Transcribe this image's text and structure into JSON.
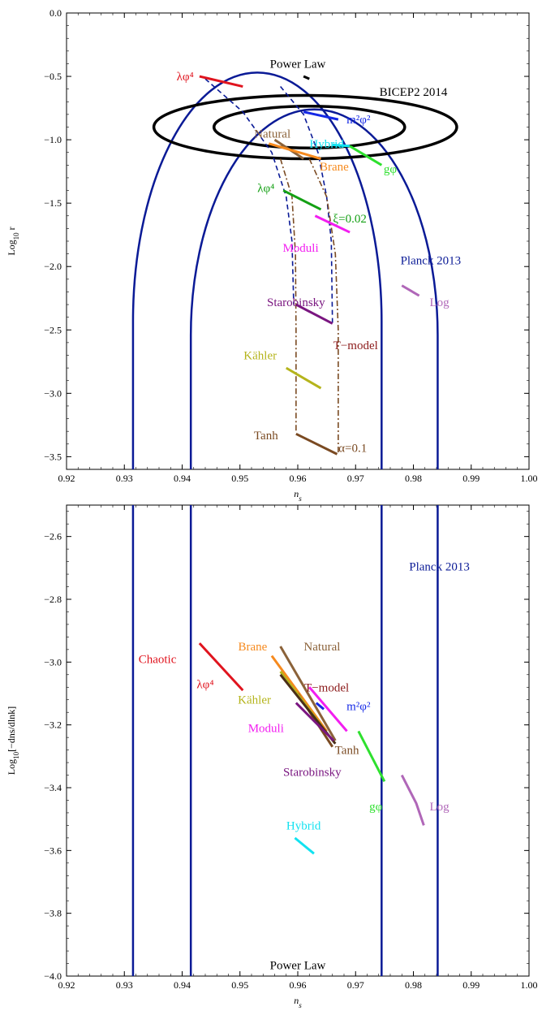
{
  "chart_data": [
    {
      "type": "line",
      "xlabel": "n_s",
      "ylabel": "Log_10 r",
      "xlim": [
        0.92,
        1.0
      ],
      "ylim": [
        -3.6,
        0.0
      ],
      "xticks": [
        0.92,
        0.93,
        0.94,
        0.95,
        0.96,
        0.97,
        0.98,
        0.99,
        1.0
      ],
      "xtick_labels": [
        "0.92",
        "0.93",
        "0.94",
        "0.95",
        "0.96",
        "0.97",
        "0.98",
        "0.99",
        "1.00"
      ],
      "yticks": [
        0.0,
        -0.5,
        -1.0,
        -1.5,
        -2.0,
        -2.5,
        -3.0,
        -3.5
      ],
      "ytick_labels": [
        "0.0",
        "−0.5",
        "−1.0",
        "−1.5",
        "−2.0",
        "−2.5",
        "−3.0",
        "−3.5"
      ],
      "contours": [
        {
          "label": "Planck 2013",
          "color": "#0a1a96",
          "width": 2.5,
          "left": [
            0.9315,
            0.9415
          ],
          "right": [
            0.9745,
            0.9842
          ],
          "top": [
            -0.47,
            -0.76
          ]
        },
        {
          "label": "BICEP2 2014",
          "color": "#000000",
          "width": 3.5,
          "ellipses": [
            {
              "cx": 0.9613,
              "cy": -0.9,
              "rx": 0.0262,
              "ry": 0.25
            },
            {
              "cx": 0.962,
              "cy": -0.9,
              "rx": 0.0165,
              "ry": 0.165
            }
          ]
        }
      ],
      "dashed_curves": [
        {
          "style": "dashed",
          "color": "#0a1a96",
          "points": [
            [
              0.944,
              -0.52
            ],
            [
              0.9505,
              -0.78
            ],
            [
              0.9555,
              -1.1
            ],
            [
              0.958,
              -1.45
            ],
            [
              0.959,
              -1.8
            ],
            [
              0.9593,
              -2.3
            ]
          ]
        },
        {
          "style": "dashed",
          "color": "#0a1a96",
          "points": [
            [
              0.957,
              -0.58
            ],
            [
              0.961,
              -0.8
            ],
            [
              0.9635,
              -1.1
            ],
            [
              0.965,
              -1.45
            ],
            [
              0.9658,
              -1.8
            ],
            [
              0.966,
              -2.45
            ]
          ]
        },
        {
          "style": "dashdot",
          "color": "#7a4a22",
          "points": [
            [
              0.957,
              -1.15
            ],
            [
              0.959,
              -1.45
            ],
            [
              0.9596,
              -1.9
            ],
            [
              0.9597,
              -2.5
            ],
            [
              0.9597,
              -3.3
            ]
          ]
        },
        {
          "style": "dashdot",
          "color": "#7a4a22",
          "points": [
            [
              0.962,
              -1.15
            ],
            [
              0.965,
              -1.45
            ],
            [
              0.9665,
              -1.9
            ],
            [
              0.967,
              -2.5
            ],
            [
              0.967,
              -3.48
            ]
          ]
        }
      ],
      "series": [
        {
          "name": "Power Law",
          "color": "#000000",
          "points": [
            [
              0.961,
              -0.5
            ],
            [
              0.962,
              -0.52
            ]
          ]
        },
        {
          "name": "λφ⁴",
          "color": "#e0141e",
          "points": [
            [
              0.943,
              -0.5
            ],
            [
              0.9505,
              -0.58
            ]
          ]
        },
        {
          "name": "m²φ²",
          "color": "#1428e6",
          "points": [
            [
              0.961,
              -0.78
            ],
            [
              0.967,
              -0.84
            ]
          ]
        },
        {
          "name": "Natural",
          "color": "#8b6239",
          "points": [
            [
              0.956,
              -1.0
            ],
            [
              0.961,
              -1.15
            ]
          ]
        },
        {
          "name": "Hybrid",
          "color": "#12e2f0",
          "points": [
            [
              0.966,
              -1.04
            ],
            [
              0.969,
              -1.05
            ]
          ]
        },
        {
          "name": "Brane",
          "color": "#f68a1e",
          "points": [
            [
              0.955,
              -1.03
            ],
            [
              0.964,
              -1.15
            ]
          ]
        },
        {
          "name": "gφ",
          "color": "#2ee02e",
          "points": [
            [
              0.969,
              -1.05
            ],
            [
              0.9745,
              -1.2
            ]
          ]
        },
        {
          "name": "λφ⁴, ξ=0.02",
          "color": "#14a014",
          "points": [
            [
              0.9575,
              -1.4
            ],
            [
              0.964,
              -1.55
            ]
          ]
        },
        {
          "name": "Moduli",
          "color": "#f21ef0",
          "points": [
            [
              0.963,
              -1.6
            ],
            [
              0.969,
              -1.73
            ]
          ]
        },
        {
          "name": "Log",
          "color": "#b067b8",
          "points": [
            [
              0.978,
              -2.15
            ],
            [
              0.981,
              -2.23
            ]
          ]
        },
        {
          "name": "Starobinsky",
          "color": "#7a1680",
          "points": [
            [
              0.9597,
              -2.3
            ],
            [
              0.966,
              -2.45
            ]
          ]
        },
        {
          "name": "Kähler",
          "color": "#b5b41c",
          "points": [
            [
              0.958,
              -2.8
            ],
            [
              0.964,
              -2.96
            ]
          ]
        },
        {
          "name": "Tanh",
          "color": "#7a4a22",
          "points": [
            [
              0.9597,
              -3.32
            ],
            [
              0.9668,
              -3.48
            ]
          ]
        },
        {
          "name": "T−model",
          "color": "#8b1a1a",
          "points": []
        },
        {
          "name": "α=0.1",
          "color": "#7a4a22",
          "points": []
        }
      ],
      "labels": [
        {
          "text": "Power Law",
          "x": 0.96,
          "y": -0.4,
          "color": "#000000",
          "anchor": "middle"
        },
        {
          "text": "BICEP2 2014",
          "x": 0.98,
          "y": -0.62,
          "color": "#000000",
          "anchor": "middle"
        },
        {
          "text": "λφ⁴",
          "x": 0.942,
          "y": -0.5,
          "color": "#e0141e",
          "anchor": "end"
        },
        {
          "text": "m²φ²",
          "x": 0.9705,
          "y": -0.84,
          "color": "#1428e6",
          "anchor": "middle"
        },
        {
          "text": "Natural",
          "x": 0.9556,
          "y": -0.95,
          "color": "#8b6239",
          "anchor": "middle"
        },
        {
          "text": "Hybrid",
          "x": 0.965,
          "y": -1.03,
          "color": "#12e2f0",
          "anchor": "middle"
        },
        {
          "text": "Brane",
          "x": 0.9663,
          "y": -1.21,
          "color": "#f68a1e",
          "anchor": "middle"
        },
        {
          "text": "gφ",
          "x": 0.976,
          "y": -1.23,
          "color": "#2ee02e",
          "anchor": "middle"
        },
        {
          "text": "λφ⁴",
          "x": 0.9545,
          "y": -1.38,
          "color": "#14a014",
          "anchor": "middle"
        },
        {
          "text": "ξ=0.02",
          "x": 0.969,
          "y": -1.62,
          "color": "#14a014",
          "anchor": "middle"
        },
        {
          "text": "Moduli",
          "x": 0.9605,
          "y": -1.85,
          "color": "#f21ef0",
          "anchor": "middle"
        },
        {
          "text": "Planck 2013",
          "x": 0.983,
          "y": -1.95,
          "color": "#0a1a96",
          "anchor": "middle"
        },
        {
          "text": "Log",
          "x": 0.9845,
          "y": -2.28,
          "color": "#b067b8",
          "anchor": "middle"
        },
        {
          "text": "Starobinsky",
          "x": 0.9597,
          "y": -2.28,
          "color": "#7a1680",
          "anchor": "middle"
        },
        {
          "text": "T−model",
          "x": 0.97,
          "y": -2.62,
          "color": "#8b1a1a",
          "anchor": "middle"
        },
        {
          "text": "Kähler",
          "x": 0.9535,
          "y": -2.7,
          "color": "#b5b41c",
          "anchor": "middle"
        },
        {
          "text": "Tanh",
          "x": 0.9545,
          "y": -3.33,
          "color": "#7a4a22",
          "anchor": "middle"
        },
        {
          "text": "α=0.1",
          "x": 0.9695,
          "y": -3.43,
          "color": "#7a4a22",
          "anchor": "middle"
        }
      ]
    },
    {
      "type": "line",
      "xlabel": "n_s",
      "ylabel": "Log_10[−dn_s/dlnk]",
      "xlim": [
        0.92,
        1.0
      ],
      "ylim": [
        -4.0,
        -2.5
      ],
      "xticks": [
        0.92,
        0.93,
        0.94,
        0.95,
        0.96,
        0.97,
        0.98,
        0.99,
        1.0
      ],
      "xtick_labels": [
        "0.92",
        "0.93",
        "0.94",
        "0.95",
        "0.96",
        "0.97",
        "0.98",
        "0.99",
        "1.00"
      ],
      "yticks": [
        -2.6,
        -2.8,
        -3.0,
        -3.2,
        -3.4,
        -3.6,
        -3.8,
        -4.0
      ],
      "ytick_labels": [
        "−2.6",
        "−2.8",
        "−3.0",
        "−3.2",
        "−3.4",
        "−3.6",
        "−3.8",
        "−4.0"
      ],
      "vlines": {
        "label": "Planck 2013",
        "color": "#0a1a96",
        "x": [
          0.9315,
          0.9415,
          0.9745,
          0.9842
        ]
      },
      "series": [
        {
          "name": "Chaotic λφ⁴",
          "color": "#e0141e",
          "points": [
            [
              0.943,
              -2.94
            ],
            [
              0.9505,
              -3.09
            ]
          ]
        },
        {
          "name": "Brane",
          "color": "#f68a1e",
          "points": [
            [
              0.9555,
              -2.98
            ],
            [
              0.965,
              -3.22
            ]
          ]
        },
        {
          "name": "Natural",
          "color": "#8b6239",
          "points": [
            [
              0.957,
              -2.95
            ],
            [
              0.9665,
              -3.25
            ]
          ]
        },
        {
          "name": "T−model",
          "color": "#7a4a22",
          "points": [
            [
              0.96,
              -3.1
            ],
            [
              0.966,
              -3.27
            ]
          ]
        },
        {
          "name": "Kähler",
          "color": "#b5b41c",
          "points": [
            [
              0.957,
              -3.03
            ],
            [
              0.964,
              -3.2
            ]
          ]
        },
        {
          "name": "Tanh",
          "color": "#4a2e18",
          "points": [
            [
              0.957,
              -3.04
            ],
            [
              0.9665,
              -3.26
            ]
          ]
        },
        {
          "name": "Starobinsky",
          "color": "#7a1680",
          "points": [
            [
              0.9597,
              -3.13
            ],
            [
              0.9662,
              -3.25
            ]
          ]
        },
        {
          "name": "Moduli",
          "color": "#f21ef0",
          "points": [
            [
              0.962,
              -3.08
            ],
            [
              0.9685,
              -3.22
            ]
          ]
        },
        {
          "name": "m²φ²",
          "color": "#1428e6",
          "points": [
            [
              0.9632,
              -3.13
            ],
            [
              0.9645,
              -3.15
            ]
          ]
        },
        {
          "name": "gφ",
          "color": "#2ee02e",
          "points": [
            [
              0.9705,
              -3.22
            ],
            [
              0.975,
              -3.38
            ]
          ]
        },
        {
          "name": "Log",
          "color": "#b067b8",
          "points": [
            [
              0.978,
              -3.36
            ],
            [
              0.9805,
              -3.45
            ],
            [
              0.9818,
              -3.52
            ]
          ]
        },
        {
          "name": "Hybrid",
          "color": "#12e2f0",
          "points": [
            [
              0.9595,
              -3.56
            ],
            [
              0.9628,
              -3.61
            ]
          ]
        },
        {
          "name": "Power Law",
          "color": "#000000",
          "points": []
        }
      ],
      "labels": [
        {
          "text": "Planck 2013",
          "x": 0.9845,
          "y": -2.695,
          "color": "#0a1a96",
          "anchor": "middle"
        },
        {
          "text": "Chaotic",
          "x": 0.939,
          "y": -2.99,
          "color": "#e0141e",
          "anchor": "end"
        },
        {
          "text": "λφ⁴",
          "x": 0.944,
          "y": -3.07,
          "color": "#e0141e",
          "anchor": "middle"
        },
        {
          "text": "Brane",
          "x": 0.9522,
          "y": -2.95,
          "color": "#f68a1e",
          "anchor": "middle"
        },
        {
          "text": "Natural",
          "x": 0.9642,
          "y": -2.95,
          "color": "#8b6239",
          "anchor": "middle"
        },
        {
          "text": "T−model",
          "x": 0.965,
          "y": -3.08,
          "color": "#8b1a1a",
          "anchor": "middle"
        },
        {
          "text": "Kähler",
          "x": 0.9525,
          "y": -3.12,
          "color": "#b5b41c",
          "anchor": "middle"
        },
        {
          "text": "m²φ²",
          "x": 0.9705,
          "y": -3.14,
          "color": "#1428e6",
          "anchor": "middle"
        },
        {
          "text": "Moduli",
          "x": 0.9545,
          "y": -3.21,
          "color": "#f21ef0",
          "anchor": "middle"
        },
        {
          "text": "Tanh",
          "x": 0.9685,
          "y": -3.28,
          "color": "#7a4a22",
          "anchor": "middle"
        },
        {
          "text": "Starobinsky",
          "x": 0.9625,
          "y": -3.35,
          "color": "#7a1680",
          "anchor": "middle"
        },
        {
          "text": "gφ",
          "x": 0.9735,
          "y": -3.46,
          "color": "#2ee02e",
          "anchor": "middle"
        },
        {
          "text": "Log",
          "x": 0.9845,
          "y": -3.46,
          "color": "#b067b8",
          "anchor": "middle"
        },
        {
          "text": "Hybrid",
          "x": 0.961,
          "y": -3.52,
          "color": "#12e2f0",
          "anchor": "middle"
        },
        {
          "text": "Power Law",
          "x": 0.96,
          "y": -3.965,
          "color": "#000000",
          "anchor": "middle"
        }
      ]
    }
  ]
}
